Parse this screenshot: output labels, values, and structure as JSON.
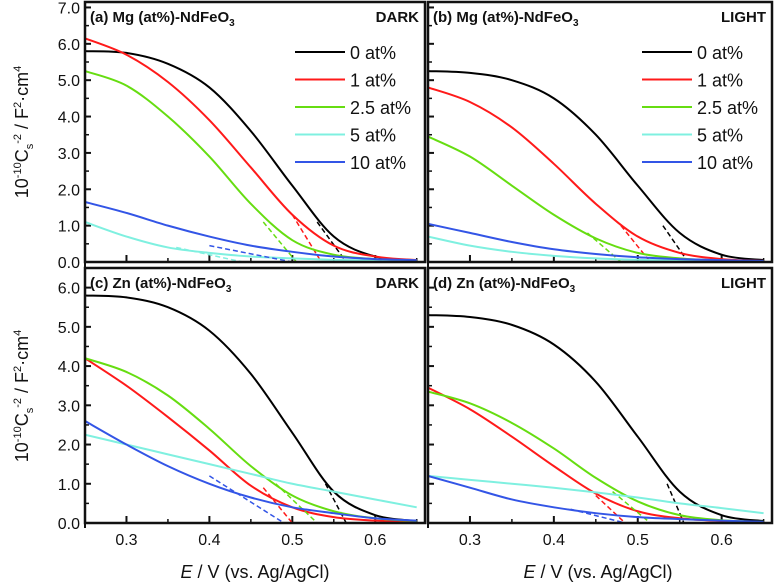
{
  "chart_data": [
    {
      "type": "line",
      "panel_label": "(a) Mg (at%)-NdFeO",
      "panel_sub": "3",
      "condition": "DARK",
      "xlim": [
        0.25,
        0.66
      ],
      "ylim": [
        0,
        7.15
      ],
      "yticks": [
        0.0,
        1.0,
        2.0,
        3.0,
        4.0,
        5.0,
        6.0,
        7.0
      ],
      "show_ytick_labels": true,
      "show_xtick_labels": false,
      "show_legend": true,
      "x": [
        0.25,
        0.3,
        0.35,
        0.4,
        0.45,
        0.5,
        0.55,
        0.6,
        0.65
      ],
      "series": [
        {
          "name": "0 at%",
          "color": "#000000",
          "values": [
            5.8,
            5.75,
            5.45,
            4.8,
            3.6,
            2.1,
            0.7,
            0.15,
            0.05
          ],
          "fit": [
            0.53,
            1.1,
            0.565,
            0
          ]
        },
        {
          "name": "1 at%",
          "color": "#ff1a1a",
          "values": [
            6.15,
            5.7,
            4.95,
            3.9,
            2.6,
            1.3,
            0.45,
            0.15,
            0.05
          ],
          "fit": [
            0.5,
            1.3,
            0.535,
            0
          ]
        },
        {
          "name": "2.5 at%",
          "color": "#66dd11",
          "values": [
            5.25,
            4.85,
            4.0,
            2.9,
            1.6,
            0.6,
            0.2,
            0.08,
            0.03
          ],
          "fit": [
            0.465,
            1.1,
            0.505,
            0
          ]
        },
        {
          "name": "5 at%",
          "color": "#7ff0e0",
          "values": [
            1.1,
            0.7,
            0.4,
            0.25,
            0.15,
            0.1,
            0.06,
            0.04,
            0.03
          ],
          "fit": [
            0.36,
            0.4,
            0.44,
            0
          ]
        },
        {
          "name": "10 at%",
          "color": "#3355e6",
          "values": [
            1.65,
            1.35,
            1.0,
            0.7,
            0.45,
            0.28,
            0.15,
            0.08,
            0.05
          ],
          "fit": [
            0.4,
            0.45,
            0.5,
            0
          ]
        }
      ]
    },
    {
      "type": "line",
      "panel_label": "(b) Mg (at%)-NdFeO",
      "panel_sub": "3",
      "condition": "LIGHT",
      "xlim": [
        0.25,
        0.66
      ],
      "ylim": [
        0,
        7.15
      ],
      "yticks": [
        0.0,
        1.0,
        2.0,
        3.0,
        4.0,
        5.0,
        6.0,
        7.0
      ],
      "show_ytick_labels": false,
      "show_xtick_labels": false,
      "show_legend": true,
      "x": [
        0.25,
        0.3,
        0.35,
        0.4,
        0.45,
        0.5,
        0.55,
        0.6,
        0.65
      ],
      "series": [
        {
          "name": "0 at%",
          "color": "#000000",
          "values": [
            5.25,
            5.2,
            5.0,
            4.5,
            3.5,
            2.1,
            0.8,
            0.2,
            0.05
          ],
          "fit": [
            0.53,
            1.0,
            0.56,
            0
          ]
        },
        {
          "name": "1 at%",
          "color": "#ff1a1a",
          "values": [
            4.8,
            4.4,
            3.7,
            2.7,
            1.6,
            0.7,
            0.25,
            0.08,
            0.03
          ],
          "fit": [
            0.48,
            1.0,
            0.515,
            0
          ]
        },
        {
          "name": "2.5 at%",
          "color": "#66dd11",
          "values": [
            3.45,
            2.9,
            2.1,
            1.3,
            0.65,
            0.25,
            0.1,
            0.04,
            0.02
          ],
          "fit": [
            0.44,
            0.8,
            0.48,
            0
          ]
        },
        {
          "name": "5 at%",
          "color": "#7ff0e0",
          "values": [
            0.7,
            0.45,
            0.28,
            0.17,
            0.1,
            0.06,
            0.04,
            0.03,
            0.02
          ],
          "fit": null
        },
        {
          "name": "10 at%",
          "color": "#3355e6",
          "values": [
            1.05,
            0.8,
            0.55,
            0.35,
            0.22,
            0.13,
            0.08,
            0.05,
            0.03
          ],
          "fit": null
        }
      ]
    },
    {
      "type": "line",
      "panel_label": "(c) Zn (at%)-NdFeO",
      "panel_sub": "3",
      "condition": "DARK",
      "xlim": [
        0.25,
        0.66
      ],
      "ylim": [
        0,
        6.5
      ],
      "yticks": [
        0.0,
        1.0,
        2.0,
        3.0,
        4.0,
        5.0,
        6.0
      ],
      "show_ytick_labels": true,
      "show_xtick_labels": true,
      "show_legend": false,
      "x": [
        0.25,
        0.3,
        0.35,
        0.4,
        0.45,
        0.5,
        0.55,
        0.6,
        0.65
      ],
      "series": [
        {
          "name": "0 at%",
          "color": "#000000",
          "values": [
            5.8,
            5.75,
            5.5,
            4.9,
            3.8,
            2.3,
            0.8,
            0.2,
            0.05
          ],
          "fit": [
            0.54,
            1.0,
            0.565,
            0
          ]
        },
        {
          "name": "1 at%",
          "color": "#ff1a1a",
          "values": [
            4.2,
            3.5,
            2.7,
            1.85,
            0.95,
            0.4,
            0.15,
            0.06,
            0.03
          ],
          "fit": [
            0.465,
            0.9,
            0.5,
            0
          ]
        },
        {
          "name": "2.5 at%",
          "color": "#66dd11",
          "values": [
            4.2,
            3.85,
            3.25,
            2.4,
            1.45,
            0.7,
            0.3,
            0.12,
            0.05
          ],
          "fit": [
            0.48,
            1.0,
            0.53,
            0
          ]
        },
        {
          "name": "5 at%",
          "color": "#7ff0e0",
          "values": [
            2.25,
            2.0,
            1.75,
            1.5,
            1.25,
            1.0,
            0.8,
            0.6,
            0.4
          ],
          "fit": null
        },
        {
          "name": "10 at%",
          "color": "#3355e6",
          "values": [
            2.6,
            2.0,
            1.45,
            1.0,
            0.65,
            0.4,
            0.25,
            0.12,
            0.06
          ],
          "fit": [
            0.4,
            1.2,
            0.49,
            0
          ]
        }
      ]
    },
    {
      "type": "line",
      "panel_label": "(d) Zn (at%)-NdFeO",
      "panel_sub": "3",
      "condition": "LIGHT",
      "xlim": [
        0.25,
        0.66
      ],
      "ylim": [
        0,
        6.5
      ],
      "yticks": [
        0.0,
        1.0,
        2.0,
        3.0,
        4.0,
        5.0,
        6.0
      ],
      "show_ytick_labels": false,
      "show_xtick_labels": true,
      "show_legend": false,
      "x": [
        0.25,
        0.3,
        0.35,
        0.4,
        0.45,
        0.5,
        0.55,
        0.6,
        0.65
      ],
      "series": [
        {
          "name": "0 at%",
          "color": "#000000",
          "values": [
            5.3,
            5.25,
            5.05,
            4.55,
            3.6,
            2.2,
            0.8,
            0.2,
            0.05
          ],
          "fit": [
            0.535,
            1.0,
            0.555,
            0
          ]
        },
        {
          "name": "1 at%",
          "color": "#ff1a1a",
          "values": [
            3.45,
            2.9,
            2.2,
            1.45,
            0.75,
            0.3,
            0.12,
            0.05,
            0.02
          ],
          "fit": [
            0.45,
            0.7,
            0.485,
            0
          ]
        },
        {
          "name": "2.5 at%",
          "color": "#66dd11",
          "values": [
            3.35,
            3.05,
            2.55,
            1.9,
            1.15,
            0.55,
            0.2,
            0.07,
            0.03
          ],
          "fit": [
            0.47,
            0.8,
            0.515,
            0
          ]
        },
        {
          "name": "5 at%",
          "color": "#7ff0e0",
          "values": [
            1.2,
            1.1,
            1.0,
            0.9,
            0.78,
            0.65,
            0.5,
            0.38,
            0.25
          ],
          "fit": null
        },
        {
          "name": "10 at%",
          "color": "#3355e6",
          "values": [
            1.2,
            0.9,
            0.6,
            0.4,
            0.25,
            0.15,
            0.1,
            0.06,
            0.03
          ],
          "fit": [
            0.42,
            0.35,
            0.485,
            0
          ]
        }
      ]
    }
  ],
  "xticks": [
    0.3,
    0.4,
    0.5,
    0.6
  ],
  "xlabel_italic": "E",
  "xlabel_rest": " / V (vs. Ag/AgCl)",
  "ylabel": {
    "p1": "10",
    "sup1": "-10",
    "p2": "C",
    "sub": "s",
    "sup2": "-2",
    "p3": " / F",
    "sup3": "2",
    "p4": "·cm",
    "sup4": "4"
  }
}
